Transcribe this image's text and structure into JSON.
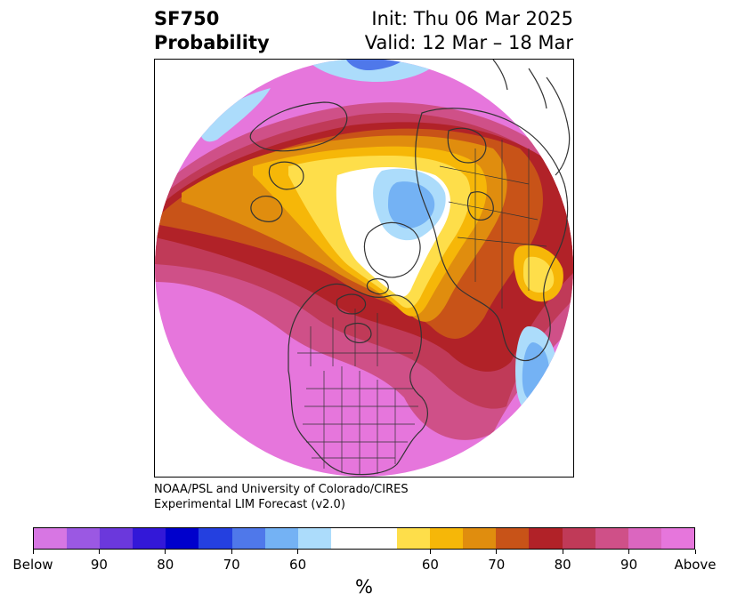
{
  "header": {
    "variable": "SF750",
    "kind": "Probability",
    "init": "Init: Thu 06 Mar 2025",
    "valid": "Valid: 12 Mar – 18 Mar"
  },
  "credit": {
    "line1": "NOAA/PSL and University of Colorado/CIRES",
    "line2": "Experimental LIM Forecast (v2.0)"
  },
  "colorbar": {
    "unit": "%",
    "colors": [
      "#d776e3",
      "#9b58e3",
      "#6b38dc",
      "#3318d8",
      "#0000cc",
      "#2440e0",
      "#4f78ea",
      "#74b2f4",
      "#acdcfb",
      "#ffffff",
      "#ffffff",
      "#fede4a",
      "#f6b708",
      "#e08d0e",
      "#c85318",
      "#b12228",
      "#c03a58",
      "#cf5088",
      "#db66bf",
      "#e676dc"
    ],
    "ticks": [
      "Below",
      "90",
      "80",
      "70",
      "60",
      "",
      "60",
      "70",
      "80",
      "90",
      "Above"
    ]
  },
  "map": {
    "projection": "north polar stereographic",
    "palette": {
      "above_extreme": "#e676dc",
      "above_90": "#db66bf",
      "above_85": "#cf5088",
      "above_80": "#c03a58",
      "above_75": "#b12228",
      "above_70": "#c85318",
      "above_65": "#e08d0e",
      "above_60": "#f6b708",
      "above_55": "#fede4a",
      "below_55": "#acdcfb",
      "below_60": "#74b2f4",
      "below_65": "#4f78ea",
      "coastline": "#333333"
    }
  }
}
